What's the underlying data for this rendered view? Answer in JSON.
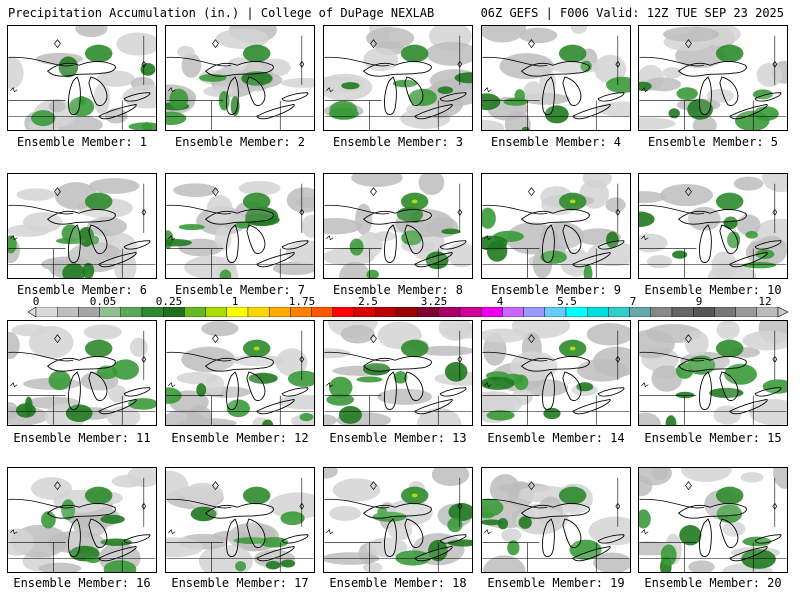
{
  "header": {
    "left": "Precipitation Accumulation (in.) | College of DuPage NEXLAB",
    "right": "06Z GEFS | F006 Valid: 12Z TUE SEP 23 2025"
  },
  "colorbar": {
    "tick_labels": [
      "0",
      "0.05",
      "0.25",
      "1",
      "1.75",
      "2.5",
      "3.25",
      "4",
      "5.5",
      "7",
      "9",
      "12"
    ],
    "colors": [
      "#d9d9d9",
      "#bfbfbf",
      "#a6a6a6",
      "#8fbf8f",
      "#5aaa5a",
      "#2e8b2e",
      "#1f6f1f",
      "#66bb22",
      "#aadd00",
      "#ffff00",
      "#ffd700",
      "#ffaa00",
      "#ff8000",
      "#ff5500",
      "#ff0000",
      "#dd0000",
      "#bb0000",
      "#990000",
      "#800033",
      "#aa0066",
      "#cc0099",
      "#ee00ee",
      "#cc66ff",
      "#9999ff",
      "#66ccff",
      "#00ffff",
      "#00dddd",
      "#33cccc",
      "#66aaaa",
      "#888888",
      "#666666",
      "#555555",
      "#777777",
      "#999999",
      "#bbbbbb"
    ]
  },
  "panels": [
    {
      "label": "Ensemble Member: 1"
    },
    {
      "label": "Ensemble Member: 2"
    },
    {
      "label": "Ensemble Member: 3"
    },
    {
      "label": "Ensemble Member: 4"
    },
    {
      "label": "Ensemble Member: 5"
    },
    {
      "label": "Ensemble Member: 6"
    },
    {
      "label": "Ensemble Member: 7"
    },
    {
      "label": "Ensemble Member: 8"
    },
    {
      "label": "Ensemble Member: 9"
    },
    {
      "label": "Ensemble Member: 10"
    },
    {
      "label": "Ensemble Member: 11"
    },
    {
      "label": "Ensemble Member: 12"
    },
    {
      "label": "Ensemble Member: 13"
    },
    {
      "label": "Ensemble Member: 14"
    },
    {
      "label": "Ensemble Member: 15"
    },
    {
      "label": "Ensemble Member: 16"
    },
    {
      "label": "Ensemble Member: 17"
    },
    {
      "label": "Ensemble Member: 18"
    },
    {
      "label": "Ensemble Member: 19"
    },
    {
      "label": "Ensemble Member: 20"
    }
  ]
}
